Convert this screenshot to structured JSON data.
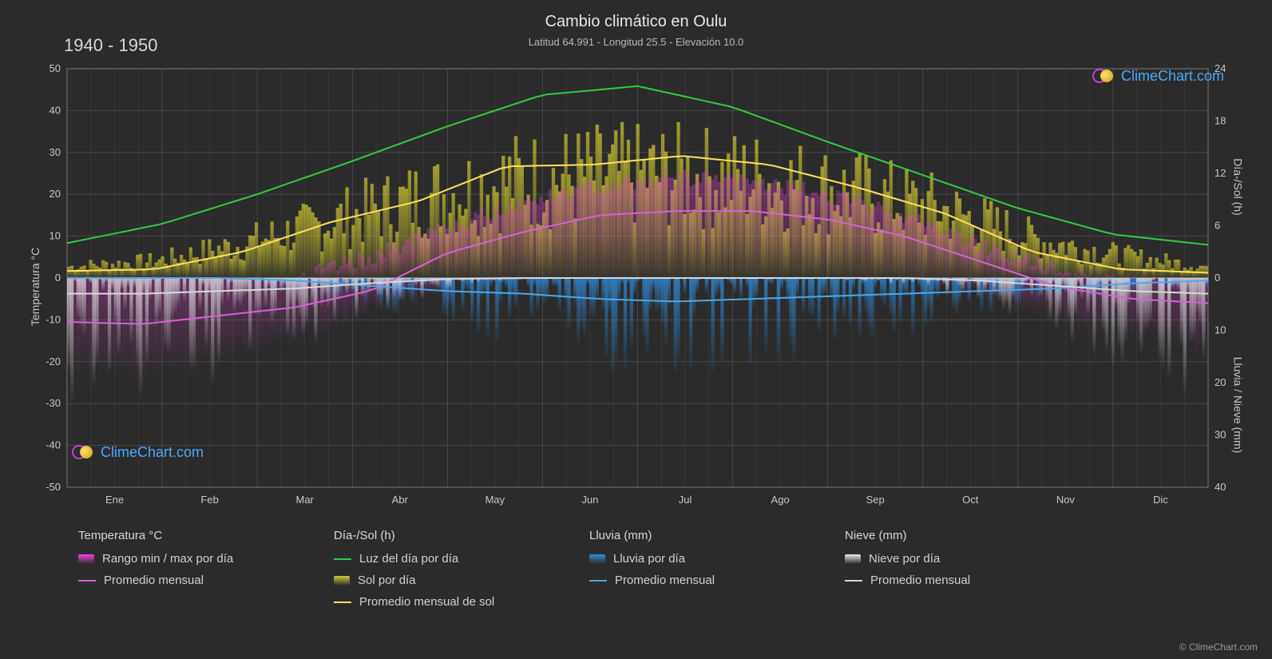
{
  "title": "Cambio climático en Oulu",
  "subtitle": "Latitud 64.991 - Longitud 25.5 - Elevación 10.0",
  "year_range": "1940 - 1950",
  "copyright": "© ClimeChart.com",
  "logo_text": "ClimeChart.com",
  "axes": {
    "left_label": "Temperatura °C",
    "right_top_label": "Día-/Sol (h)",
    "right_bot_label": "Lluvia / Nieve (mm)",
    "left_min": -50,
    "left_max": 50,
    "left_step": 10,
    "right_top_min": 0,
    "right_top_max": 24,
    "right_top_step": 6,
    "right_bot_min": 0,
    "right_bot_max": 40,
    "right_bot_step": 10,
    "months": [
      "Ene",
      "Feb",
      "Mar",
      "Abr",
      "May",
      "Jun",
      "Jul",
      "Ago",
      "Sep",
      "Oct",
      "Nov",
      "Dic"
    ]
  },
  "colors": {
    "background": "#2b2b2b",
    "grid": "#5a5a5a",
    "text": "#d0d0d0",
    "daylight_line": "#2ecc40",
    "sun_avg_line": "#ffe060",
    "sun_bars": "#c8c030",
    "temp_range": "#e040d0",
    "temp_avg_line": "#d860d8",
    "rain_bars": "#3090e0",
    "rain_avg_line": "#4aa8e8",
    "snow_bars": "#cccccc",
    "snow_avg_line": "#d8d8d8"
  },
  "series": {
    "daylight_h": [
      4.0,
      6.2,
      9.6,
      13.4,
      17.4,
      21.0,
      22.0,
      19.6,
      15.6,
      11.8,
      8.0,
      5.0,
      3.8
    ],
    "sun_avg_h": [
      0.8,
      1.0,
      3.0,
      6.4,
      8.8,
      12.8,
      13.0,
      14.0,
      13.0,
      10.4,
      7.4,
      3.0,
      1.0,
      0.6
    ],
    "sun_daily_max_h": [
      2,
      3,
      6,
      10,
      14,
      17,
      18,
      18,
      17,
      15,
      12,
      7,
      4,
      2
    ],
    "temp_avg_c": [
      -10.5,
      -11,
      -9,
      -7,
      -3,
      6,
      11,
      15,
      16,
      16,
      14,
      10,
      4,
      -2,
      -5,
      -6
    ],
    "temp_max_c": [
      -5,
      -4,
      -2,
      0,
      5,
      12,
      18,
      22,
      24,
      23,
      20,
      15,
      8,
      2,
      -1,
      -2
    ],
    "temp_min_c": [
      -22,
      -24,
      -20,
      -15,
      -8,
      -2,
      3,
      8,
      10,
      9,
      6,
      2,
      -4,
      -10,
      -14,
      -18
    ],
    "rain_avg_mm": [
      0,
      0,
      0,
      0.5,
      1.5,
      2.5,
      3,
      4,
      4.5,
      4,
      3.5,
      3,
      2.5,
      2,
      1,
      0.5
    ],
    "rain_daily_max_mm": [
      0,
      0,
      1,
      3,
      6,
      10,
      14,
      18,
      20,
      18,
      15,
      12,
      8,
      6,
      4,
      2
    ],
    "snow_avg_mm": [
      3,
      3,
      2.5,
      2,
      1,
      0.2,
      0,
      0,
      0,
      0,
      0,
      0,
      0.5,
      1.5,
      2.5,
      3
    ],
    "snow_daily_max_mm": [
      25,
      28,
      20,
      15,
      8,
      3,
      0,
      0,
      0,
      0,
      0,
      2,
      6,
      12,
      20,
      24
    ]
  },
  "legend": {
    "temp_header": "Temperatura °C",
    "temp_range": "Rango min / max por día",
    "temp_avg": "Promedio mensual",
    "daysun_header": "Día-/Sol (h)",
    "daylight": "Luz del día por día",
    "sun_daily": "Sol por día",
    "sun_avg": "Promedio mensual de sol",
    "rain_header": "Lluvia (mm)",
    "rain_daily": "Lluvia por día",
    "rain_avg": "Promedio mensual",
    "snow_header": "Nieve (mm)",
    "snow_daily": "Nieve por día",
    "snow_avg": "Promedio mensual"
  }
}
